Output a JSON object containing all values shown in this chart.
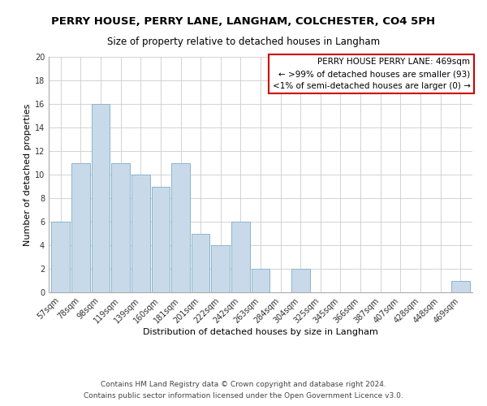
{
  "title": "PERRY HOUSE, PERRY LANE, LANGHAM, COLCHESTER, CO4 5PH",
  "subtitle": "Size of property relative to detached houses in Langham",
  "xlabel": "Distribution of detached houses by size in Langham",
  "ylabel": "Number of detached properties",
  "bar_color": "#c8daea",
  "bar_edge_color": "#8ab4cc",
  "bin_labels": [
    "57sqm",
    "78sqm",
    "98sqm",
    "119sqm",
    "139sqm",
    "160sqm",
    "181sqm",
    "201sqm",
    "222sqm",
    "242sqm",
    "263sqm",
    "284sqm",
    "304sqm",
    "325sqm",
    "345sqm",
    "366sqm",
    "387sqm",
    "407sqm",
    "428sqm",
    "448sqm",
    "469sqm"
  ],
  "counts": [
    6,
    11,
    16,
    11,
    10,
    9,
    11,
    5,
    4,
    6,
    2,
    0,
    2,
    0,
    0,
    0,
    0,
    0,
    0,
    0,
    1
  ],
  "ylim": [
    0,
    20
  ],
  "yticks": [
    0,
    2,
    4,
    6,
    8,
    10,
    12,
    14,
    16,
    18,
    20
  ],
  "annotation_line1": "PERRY HOUSE PERRY LANE: 469sqm",
  "annotation_line2": "← >99% of detached houses are smaller (93)",
  "annotation_line3": "<1% of semi-detached houses are larger (0) →",
  "annotation_box_color": "#ffffff",
  "annotation_box_edge_color": "#cc0000",
  "highlight_bin_index": 20,
  "footer_line1": "Contains HM Land Registry data © Crown copyright and database right 2024.",
  "footer_line2": "Contains public sector information licensed under the Open Government Licence v3.0.",
  "bg_color": "#ffffff",
  "grid_color": "#cccccc",
  "title_fontsize": 9.5,
  "subtitle_fontsize": 8.5,
  "axis_label_fontsize": 8,
  "tick_fontsize": 7,
  "annotation_fontsize": 7.5,
  "footer_fontsize": 6.5
}
